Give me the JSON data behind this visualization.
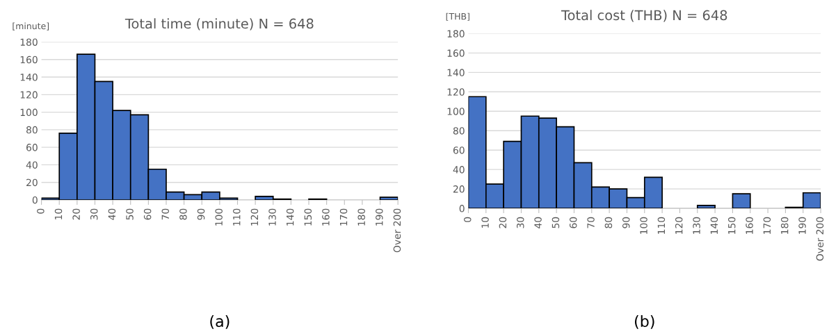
{
  "chart_data": [
    {
      "type": "histogram",
      "title": "Total time (minute) N = 648",
      "ylabel": "[minute]",
      "annotations": [
        "(a)"
      ],
      "bins": [
        0,
        10,
        20,
        30,
        40,
        50,
        60,
        70,
        80,
        90,
        100,
        110,
        120,
        130,
        140,
        150,
        160,
        170,
        180,
        190,
        200
      ],
      "values": [
        2,
        76,
        166,
        135,
        102,
        97,
        35,
        9,
        6,
        9,
        2,
        0,
        4,
        1,
        0,
        1,
        0,
        0,
        0,
        3
      ],
      "color": "#4472c4",
      "xlim": [
        0,
        200
      ],
      "ylim": [
        0,
        180
      ],
      "yticks": [
        0,
        20,
        40,
        60,
        80,
        100,
        120,
        140,
        160,
        180
      ],
      "xticks": [
        0,
        10,
        20,
        30,
        40,
        50,
        60,
        70,
        80,
        90,
        100,
        110,
        120,
        130,
        140,
        150,
        160,
        170,
        180,
        190,
        {
          "value": 200,
          "label": "Over 200"
        }
      ],
      "grid": "y"
    },
    {
      "type": "histogram",
      "title": "Total cost (THB) N = 648",
      "ylabel": "[THB]",
      "annotations": [
        "(b)"
      ],
      "bins": [
        0,
        10,
        20,
        30,
        40,
        50,
        60,
        70,
        80,
        90,
        100,
        110,
        120,
        130,
        140,
        150,
        160,
        170,
        180,
        190,
        200
      ],
      "values": [
        115,
        25,
        69,
        95,
        93,
        84,
        47,
        22,
        20,
        11,
        32,
        0,
        0,
        3,
        0,
        15,
        0,
        0,
        1,
        16
      ],
      "color": "#4472c4",
      "xlim": [
        0,
        200
      ],
      "ylim": [
        0,
        180
      ],
      "yticks": [
        0,
        20,
        40,
        60,
        80,
        100,
        120,
        140,
        160,
        180
      ],
      "xticks": [
        0,
        10,
        20,
        30,
        40,
        50,
        60,
        70,
        80,
        90,
        100,
        110,
        120,
        130,
        140,
        150,
        160,
        170,
        180,
        190,
        {
          "value": 200,
          "label": "Over 200"
        }
      ],
      "grid": "y"
    }
  ]
}
